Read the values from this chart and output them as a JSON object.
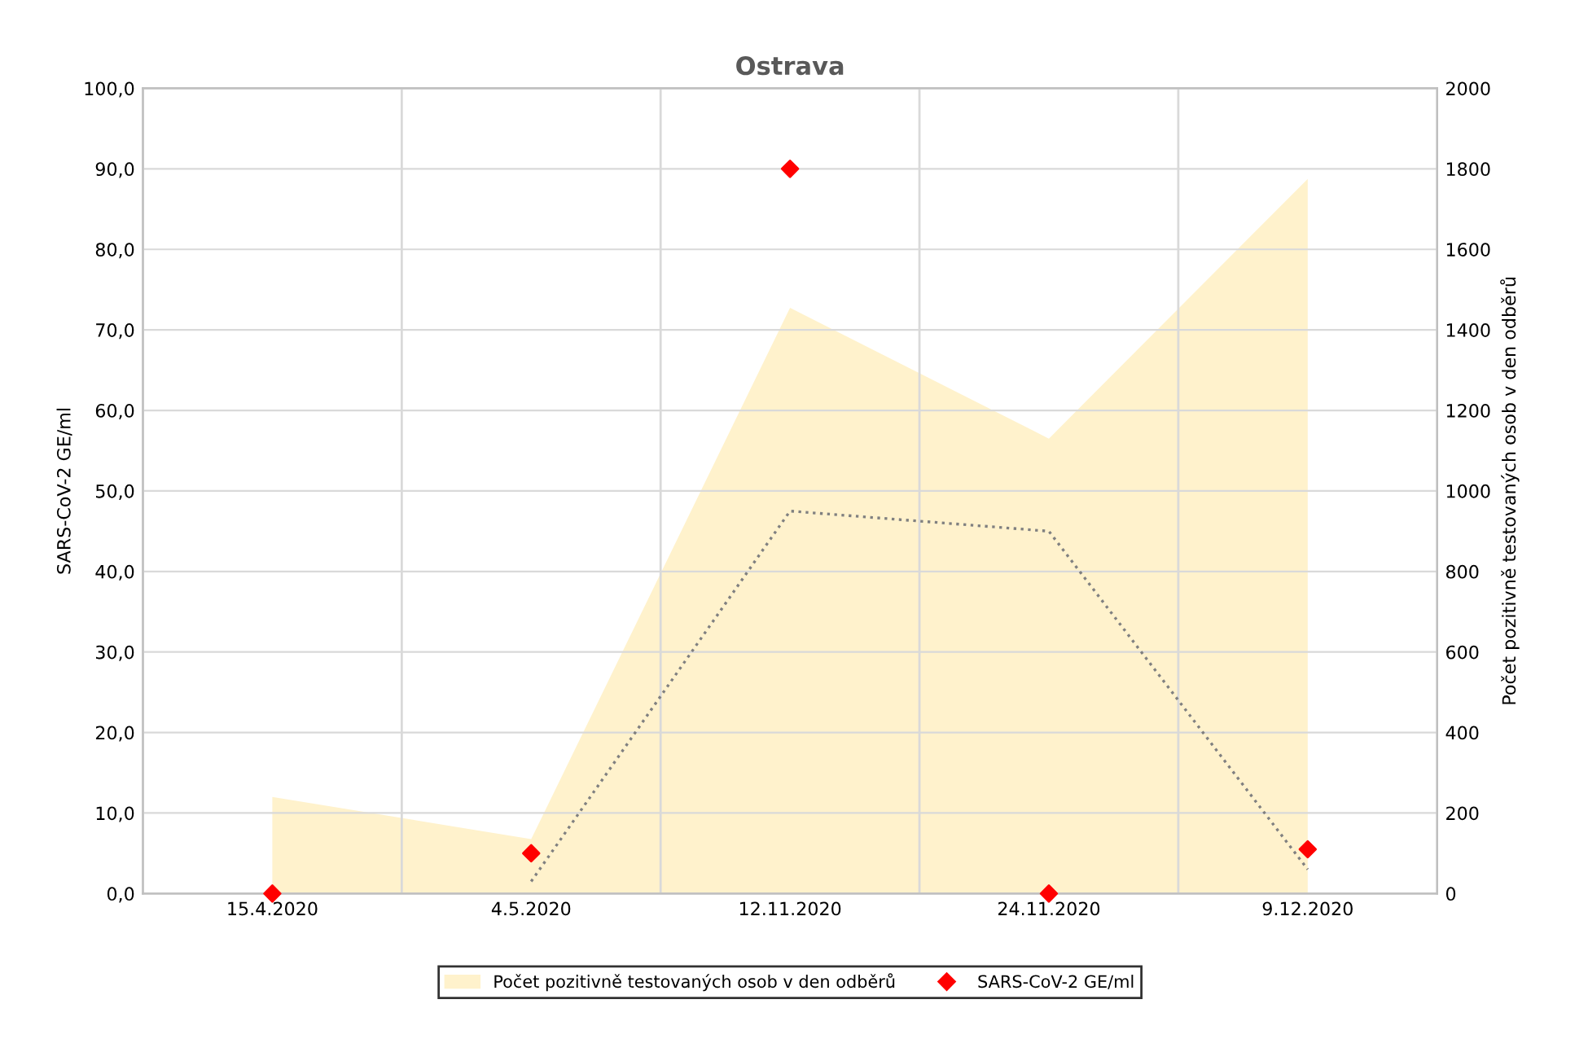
{
  "chart_data": {
    "type": "area",
    "title": "Ostrava",
    "ylabel": "SARS-CoV-2 GE/ml",
    "y2label": "Počet pozitivně testovaných osob v den odběrů",
    "categories": [
      "15.4.2020",
      "4.5.2020",
      "12.11.2020",
      "24.11.2020",
      "9.12.2020"
    ],
    "series": [
      {
        "name": "Počet pozitivně testovaných osob v den odběrů",
        "axis": "y2",
        "color": "#fff2cc",
        "values": [
          240,
          135,
          1455,
          1130,
          1775
        ]
      },
      {
        "name": "SARS-CoV-2 GE/ml",
        "type": "scatter",
        "marker": "diamond",
        "color": "#ff0000",
        "values": [
          0,
          5,
          90,
          0,
          5.5
        ]
      },
      {
        "type": "line",
        "line_style": "dotted",
        "color": "#808080",
        "values": [
          null,
          1.5,
          47.5,
          45,
          3
        ]
      }
    ],
    "ylim": [
      0,
      100
    ],
    "yticks": [
      {
        "value": 0,
        "label": "0,0"
      },
      {
        "value": 10,
        "label": "10,0"
      },
      {
        "value": 20,
        "label": "20,0"
      },
      {
        "value": 30,
        "label": "30,0"
      },
      {
        "value": 40,
        "label": "40,0"
      },
      {
        "value": 50,
        "label": "50,0"
      },
      {
        "value": 60,
        "label": "60,0"
      },
      {
        "value": 70,
        "label": "70,0"
      },
      {
        "value": 80,
        "label": "80,0"
      },
      {
        "value": 90,
        "label": "90,0"
      },
      {
        "value": 100,
        "label": "100,0"
      }
    ],
    "y2lim": [
      0,
      2000
    ],
    "y2ticks": [
      0,
      200,
      400,
      600,
      800,
      1000,
      1200,
      1400,
      1600,
      1800,
      2000
    ],
    "grid": true,
    "legend": "bottom"
  }
}
